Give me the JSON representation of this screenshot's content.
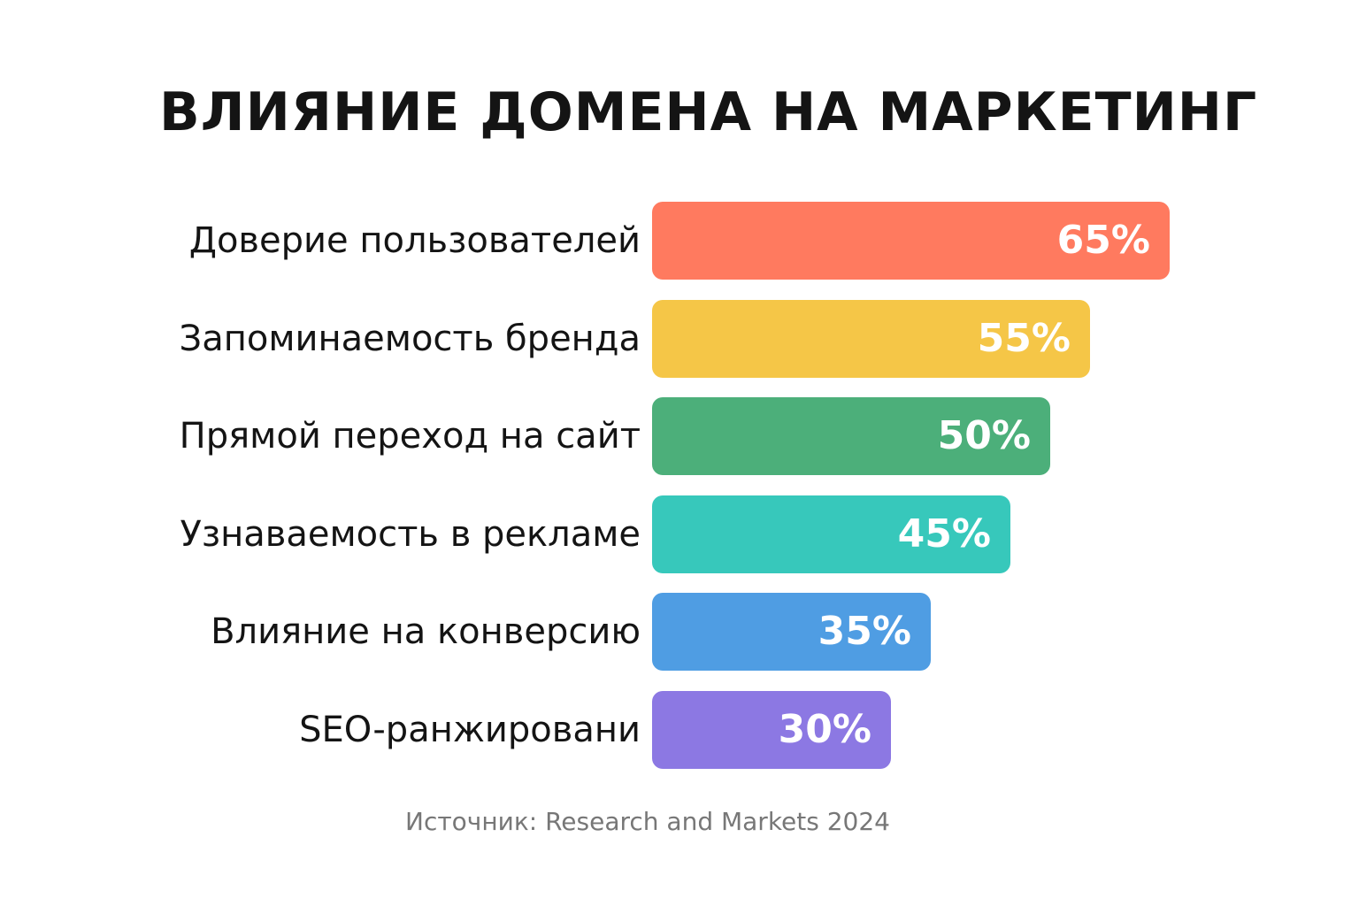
{
  "chart_data": {
    "type": "bar",
    "orientation": "horizontal",
    "title": "ВЛИЯНИЕ ДОМЕНА НА МАРКЕТИНГ",
    "source": "Источник: Research and Markets 2024",
    "grid": false,
    "legend": "none",
    "categories": [
      "Доверие пользователей",
      "Запоминаемость бренда",
      "Прямой переход на сайт",
      "Узнаваемость в рекламе",
      "Влияние на конверсию",
      "SEO-ранжировани"
    ],
    "values": [
      65,
      55,
      50,
      45,
      35,
      30
    ],
    "value_labels": [
      "65%",
      "55%",
      "50%",
      "45%",
      "35%",
      "30%"
    ],
    "colors": [
      "#ff7a5f",
      "#f5c647",
      "#4caf7a",
      "#37c8bb",
      "#4f9de3",
      "#8c78e3"
    ],
    "unit": "%",
    "xlim": [
      0,
      100
    ]
  }
}
